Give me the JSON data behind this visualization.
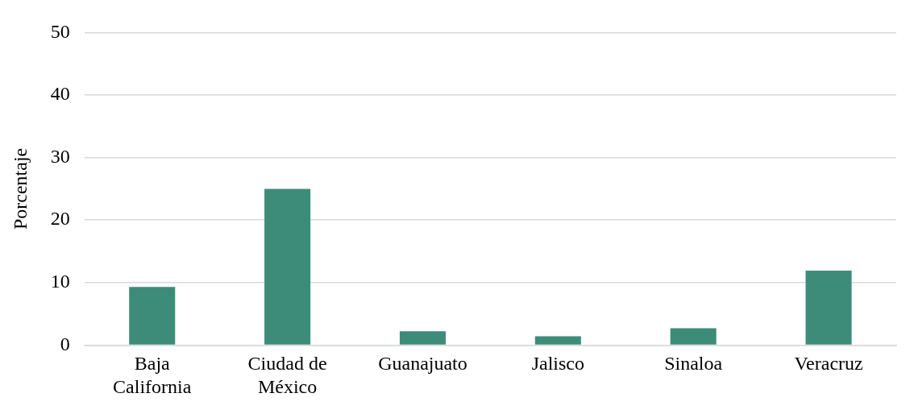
{
  "chart_data": {
    "type": "bar",
    "ylabel": "Porcentaje",
    "categories": [
      "Baja California",
      "Ciudad de México",
      "Guanajuato",
      "Jalisco",
      "Sinaloa",
      "Veracruz"
    ],
    "values": [
      9.3,
      25.0,
      2.2,
      1.4,
      2.7,
      11.9
    ],
    "color": "#3d8c7a",
    "ylim": [
      0,
      50
    ],
    "yticks": [
      0,
      10,
      20,
      30,
      40,
      50
    ],
    "grid": "y",
    "legend": false
  }
}
